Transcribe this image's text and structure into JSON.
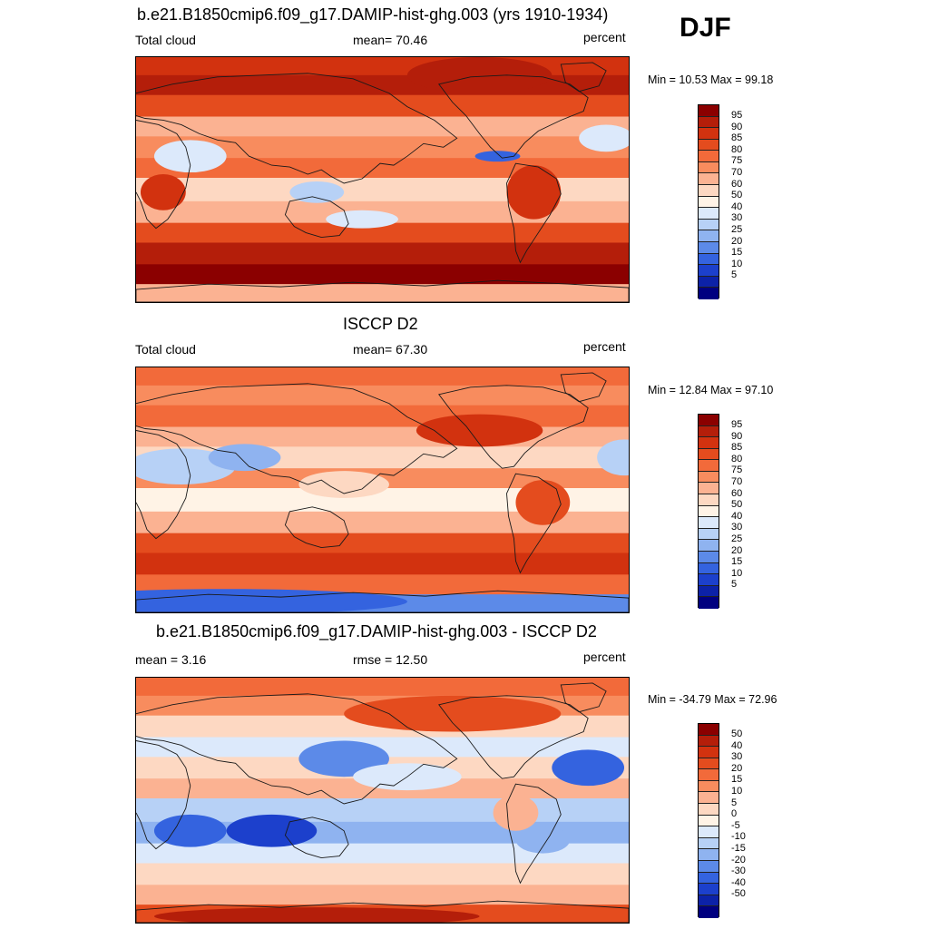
{
  "season": "DJF",
  "panels": [
    {
      "title": "b.e21.B1850cmip6.f09_g17.DAMIP-hist-ghg.003 (yrs 1910-1934)",
      "left_label": "Total cloud",
      "center_label": "mean=  70.46",
      "units": "percent",
      "minmax": "Min =  10.53 Max =  99.18",
      "colorbar": {
        "labels": [
          "95",
          "90",
          "85",
          "80",
          "75",
          "70",
          "60",
          "50",
          "40",
          "30",
          "25",
          "20",
          "15",
          "10",
          "5"
        ],
        "colors": [
          "#8b0000",
          "#b41e0a",
          "#d2320f",
          "#e44c1e",
          "#f26a3a",
          "#f88c5e",
          "#fbb292",
          "#fdd8c2",
          "#fff3e6",
          "#dce9fb",
          "#b7d1f6",
          "#8fb3f0",
          "#5c8ae8",
          "#3463df",
          "#1c40cc",
          "#0c22a8",
          "#000080"
        ]
      },
      "map_style": "model"
    },
    {
      "title": "ISCCP D2",
      "left_label": "Total cloud",
      "center_label": "mean=  67.30",
      "units": "percent",
      "minmax": "Min =  12.84 Max =  97.10",
      "colorbar": {
        "labels": [
          "95",
          "90",
          "85",
          "80",
          "75",
          "70",
          "60",
          "50",
          "40",
          "30",
          "25",
          "20",
          "15",
          "10",
          "5"
        ],
        "colors": [
          "#8b0000",
          "#b41e0a",
          "#d2320f",
          "#e44c1e",
          "#f26a3a",
          "#f88c5e",
          "#fbb292",
          "#fdd8c2",
          "#fff3e6",
          "#dce9fb",
          "#b7d1f6",
          "#8fb3f0",
          "#5c8ae8",
          "#3463df",
          "#1c40cc",
          "#0c22a8",
          "#000080"
        ]
      },
      "map_style": "obs"
    },
    {
      "title": "b.e21.B1850cmip6.f09_g17.DAMIP-hist-ghg.003 - ISCCP D2",
      "left_label": "mean =   3.16",
      "center_label": "rmse =  12.50",
      "units": "percent",
      "minmax": "Min = -34.79 Max =  72.96",
      "colorbar": {
        "labels": [
          "50",
          "40",
          "30",
          "20",
          "15",
          "10",
          "5",
          "0",
          "-5",
          "-10",
          "-15",
          "-20",
          "-30",
          "-40",
          "-50"
        ],
        "colors": [
          "#8b0000",
          "#b41e0a",
          "#d2320f",
          "#e44c1e",
          "#f26a3a",
          "#f88c5e",
          "#fbb292",
          "#fdd8c2",
          "#fff3e6",
          "#dce9fb",
          "#b7d1f6",
          "#8fb3f0",
          "#5c8ae8",
          "#3463df",
          "#1c40cc",
          "#0c22a8",
          "#000080"
        ]
      },
      "map_style": "diff"
    }
  ]
}
